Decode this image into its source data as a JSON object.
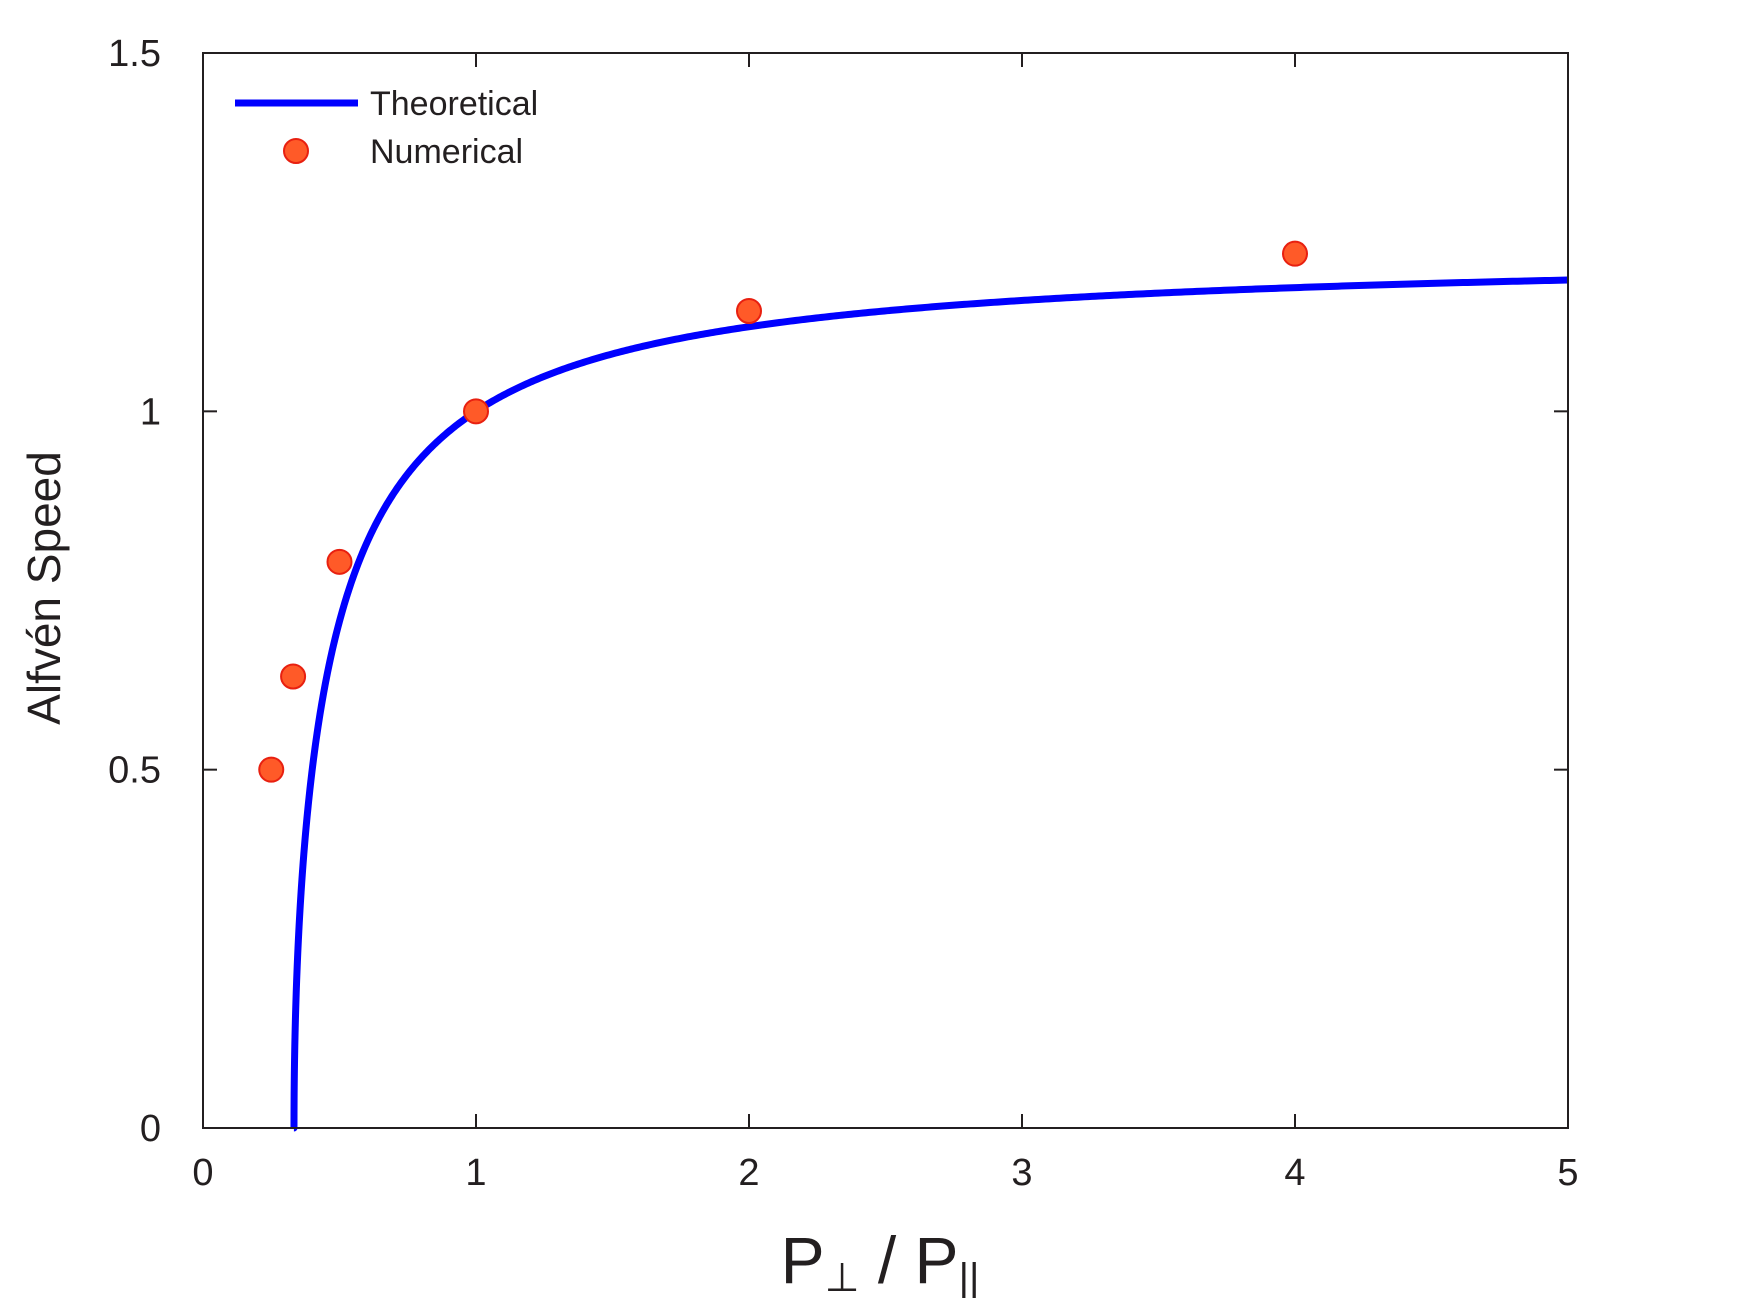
{
  "chart_data": {
    "type": "line",
    "xlabel": "P⊥ / P||",
    "xlabel_parts": {
      "p1": "P",
      "sub1": "⊥",
      "slash": " / ",
      "p2": "P",
      "sub2": "||"
    },
    "ylabel": "Alfvén Speed",
    "xlim": [
      0,
      5
    ],
    "ylim": [
      0,
      1.5
    ],
    "xticks": [
      "0",
      "1",
      "2",
      "3",
      "4",
      "5"
    ],
    "xtick_values": [
      0,
      1,
      2,
      3,
      4,
      5
    ],
    "yticks": [
      "0",
      "0.5",
      "1",
      "1.5"
    ],
    "ytick_values": [
      0,
      0.5,
      1,
      1.5
    ],
    "grid": false,
    "legend_position": "top-left",
    "series": [
      {
        "name": "Theoretical",
        "kind": "line",
        "color": "#0000ff",
        "formula": "sqrt(1.5 - 0.5 / x)",
        "x_start": 0.333
      },
      {
        "name": "Numerical",
        "kind": "markers",
        "color": "#ff5a28",
        "edge_color": "#e82010",
        "x": [
          0.25,
          0.33,
          0.5,
          1,
          2,
          4
        ],
        "y": [
          0.5,
          0.63,
          0.79,
          1.0,
          1.14,
          1.22
        ]
      }
    ]
  }
}
